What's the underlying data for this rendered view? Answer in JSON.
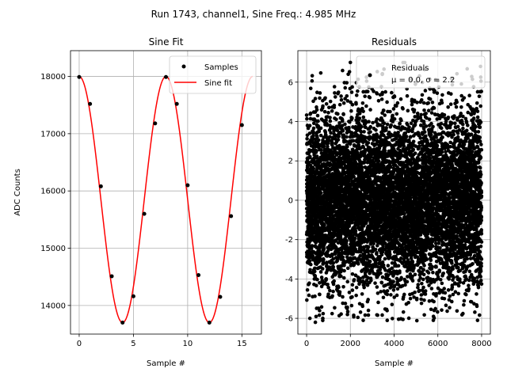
{
  "figure": {
    "suptitle": "Run 1743, channel1, Sine Freq.: 4.985 MHz"
  },
  "chart_data": [
    {
      "type": "line",
      "title": "Sine Fit",
      "xlabel": "Sample #",
      "ylabel": "ADC Counts",
      "xlim": [
        -0.8,
        16.8
      ],
      "ylim": [
        13500,
        18450
      ],
      "xticks": [
        0,
        5,
        10,
        15
      ],
      "yticks": [
        14000,
        15000,
        16000,
        17000,
        18000
      ],
      "grid": true,
      "legend_position": "top-right",
      "series": [
        {
          "name": "Samples",
          "kind": "scatter",
          "color": "#000000",
          "x": [
            0,
            1,
            2,
            3,
            4,
            5,
            6,
            7,
            8,
            9,
            10,
            11,
            12,
            13,
            14,
            15
          ],
          "y": [
            17990,
            17520,
            16080,
            14510,
            13700,
            14160,
            15600,
            17180,
            17990,
            17520,
            16100,
            14530,
            13700,
            14150,
            15560,
            17150
          ]
        },
        {
          "name": "Sine fit",
          "kind": "line",
          "color": "#ff0000",
          "function": {
            "form": "offset + amplitude * cos(2*pi*x/period + phase)",
            "offset": 15850,
            "amplitude": 2150,
            "period": 8.0,
            "phase": 0,
            "x_range": [
              0,
              16
            ]
          }
        }
      ]
    },
    {
      "type": "scatter",
      "title": "Residuals",
      "xlabel": "Sample #",
      "ylabel": "",
      "xlim": [
        -400,
        8400
      ],
      "ylim": [
        -6.8,
        7.6
      ],
      "xticks": [
        0,
        2000,
        4000,
        6000,
        8000
      ],
      "yticks": [
        -6,
        -4,
        -2,
        0,
        2,
        4,
        6
      ],
      "grid": true,
      "legend_position": "top-right",
      "series": [
        {
          "name": "Residuals",
          "legend_lines": [
            "Residuals",
            "μ = 0.0, σ = 2.2"
          ],
          "color": "#000000",
          "points_description": "8000 dense noise points spanning x 0-8000",
          "distribution": {
            "n": 8000,
            "x_range": [
              0,
              8000
            ],
            "mean": 0.0,
            "std": 2.2,
            "min": -6.2,
            "max": 7.0
          },
          "outliers": [
            {
              "x": 2000,
              "y": 7.0
            },
            {
              "x": 150,
              "y": -6.0
            },
            {
              "x": 400,
              "y": -6.2
            },
            {
              "x": 5800,
              "y": -5.9
            },
            {
              "x": 7950,
              "y": 6.8
            }
          ]
        }
      ]
    }
  ]
}
